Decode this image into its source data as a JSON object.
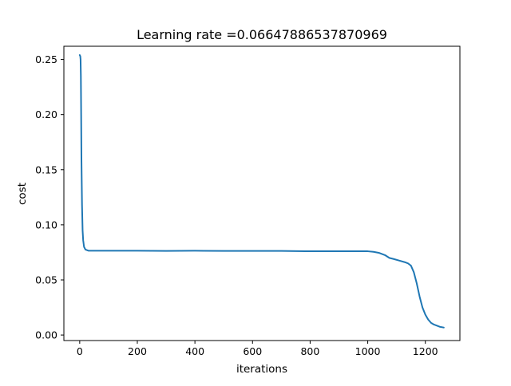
{
  "chart_data": {
    "type": "line",
    "title": "Learning rate =0.06647886537870969",
    "xlabel": "iterations",
    "ylabel": "cost",
    "xlim": [
      -55,
      1320
    ],
    "ylim": [
      -0.005,
      0.262
    ],
    "xticks": [
      0,
      200,
      400,
      600,
      800,
      1000,
      1200
    ],
    "xtick_labels": [
      "0",
      "200",
      "400",
      "600",
      "800",
      "1000",
      "1200"
    ],
    "yticks": [
      0.0,
      0.05,
      0.1,
      0.15,
      0.2,
      0.25
    ],
    "ytick_labels": [
      "0.00",
      "0.05",
      "0.10",
      "0.15",
      "0.20",
      "0.25"
    ],
    "grid": false,
    "legend": "none",
    "series": [
      {
        "color": "#1f77b4",
        "x": [
          0,
          2,
          3,
          4,
          5,
          6,
          8,
          10,
          12,
          15,
          20,
          30,
          50,
          100,
          200,
          300,
          400,
          500,
          600,
          700,
          800,
          900,
          1000,
          1020,
          1040,
          1060,
          1075,
          1090,
          1110,
          1130,
          1140,
          1150,
          1160,
          1170,
          1180,
          1190,
          1200,
          1210,
          1220,
          1230,
          1240,
          1250,
          1264
        ],
        "y": [
          0.254,
          0.253,
          0.25,
          0.235,
          0.2,
          0.16,
          0.118,
          0.095,
          0.086,
          0.08,
          0.0775,
          0.0765,
          0.0765,
          0.0765,
          0.0765,
          0.0763,
          0.0765,
          0.0763,
          0.0763,
          0.0763,
          0.076,
          0.076,
          0.076,
          0.0755,
          0.0745,
          0.0725,
          0.07,
          0.069,
          0.0675,
          0.066,
          0.065,
          0.063,
          0.057,
          0.047,
          0.035,
          0.025,
          0.0185,
          0.014,
          0.011,
          0.0095,
          0.0085,
          0.0075,
          0.0068
        ]
      }
    ]
  }
}
